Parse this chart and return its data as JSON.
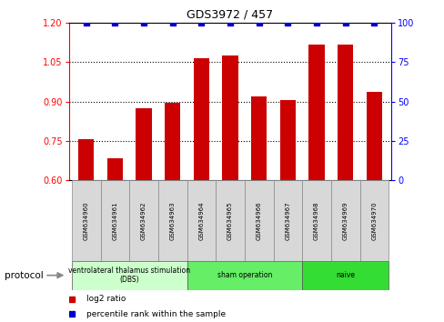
{
  "title": "GDS3972 / 457",
  "samples": [
    "GSM634960",
    "GSM634961",
    "GSM634962",
    "GSM634963",
    "GSM634964",
    "GSM634965",
    "GSM634966",
    "GSM634967",
    "GSM634968",
    "GSM634969",
    "GSM634970"
  ],
  "log2_values": [
    0.755,
    0.685,
    0.875,
    0.895,
    1.065,
    1.075,
    0.92,
    0.905,
    1.115,
    1.115,
    0.935
  ],
  "percentile_values": [
    100,
    100,
    100,
    100,
    100,
    100,
    100,
    100,
    100,
    100,
    100
  ],
  "ylim_left": [
    0.6,
    1.2
  ],
  "ylim_right": [
    0,
    100
  ],
  "yticks_left": [
    0.6,
    0.75,
    0.9,
    1.05,
    1.2
  ],
  "yticks_right": [
    0,
    25,
    50,
    75,
    100
  ],
  "bar_color": "#cc0000",
  "dot_color": "#0000cc",
  "sample_box_color": "#d8d8d8",
  "protocol_groups": [
    {
      "label": "ventrolateral thalamus stimulation\n(DBS)",
      "start": 0,
      "end": 3,
      "color": "#ccffcc"
    },
    {
      "label": "sham operation",
      "start": 4,
      "end": 7,
      "color": "#66ee66"
    },
    {
      "label": "naive",
      "start": 8,
      "end": 10,
      "color": "#33dd33"
    }
  ],
  "protocol_label": "protocol",
  "legend_items": [
    {
      "label": "log2 ratio",
      "color": "#cc0000"
    },
    {
      "label": "percentile rank within the sample",
      "color": "#0000cc"
    }
  ]
}
